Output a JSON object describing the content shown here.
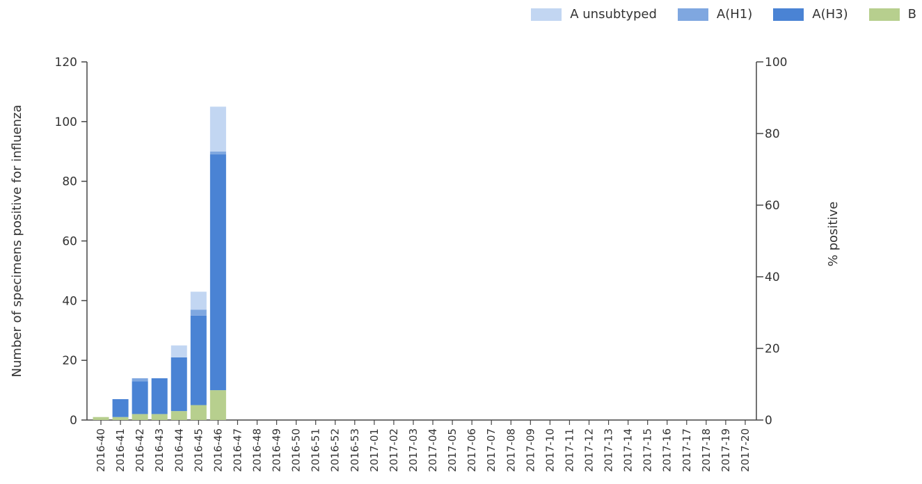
{
  "chart_data": {
    "type": "bar",
    "stacked": true,
    "categories": [
      "2016-40",
      "2016-41",
      "2016-42",
      "2016-43",
      "2016-44",
      "2016-45",
      "2016-46",
      "2016-47",
      "2016-48",
      "2016-49",
      "2016-50",
      "2016-51",
      "2016-52",
      "2016-53",
      "2017-01",
      "2017-02",
      "2017-03",
      "2017-04",
      "2017-05",
      "2017-06",
      "2017-07",
      "2017-08",
      "2017-09",
      "2017-10",
      "2017-11",
      "2017-12",
      "2017-13",
      "2017-14",
      "2017-15",
      "2017-16",
      "2017-17",
      "2017-18",
      "2017-19",
      "2017-20"
    ],
    "series": [
      {
        "name": "B",
        "color": "#b7cf8e",
        "values": [
          1,
          1,
          2,
          2,
          3,
          5,
          10,
          0,
          0,
          0,
          0,
          0,
          0,
          0,
          0,
          0,
          0,
          0,
          0,
          0,
          0,
          0,
          0,
          0,
          0,
          0,
          0,
          0,
          0,
          0,
          0,
          0,
          0,
          0
        ]
      },
      {
        "name": "A(H3)",
        "color": "#4a83d4",
        "values": [
          0,
          6,
          11,
          12,
          18,
          30,
          79,
          0,
          0,
          0,
          0,
          0,
          0,
          0,
          0,
          0,
          0,
          0,
          0,
          0,
          0,
          0,
          0,
          0,
          0,
          0,
          0,
          0,
          0,
          0,
          0,
          0,
          0,
          0
        ]
      },
      {
        "name": "A(H1)",
        "color": "#7fa7e0",
        "values": [
          0,
          0,
          1,
          0,
          0,
          2,
          1,
          0,
          0,
          0,
          0,
          0,
          0,
          0,
          0,
          0,
          0,
          0,
          0,
          0,
          0,
          0,
          0,
          0,
          0,
          0,
          0,
          0,
          0,
          0,
          0,
          0,
          0,
          0
        ]
      },
      {
        "name": "A unsubtyped",
        "color": "#c2d6f2",
        "values": [
          0,
          0,
          0,
          0,
          4,
          6,
          15,
          0,
          0,
          0,
          0,
          0,
          0,
          0,
          0,
          0,
          0,
          0,
          0,
          0,
          0,
          0,
          0,
          0,
          0,
          0,
          0,
          0,
          0,
          0,
          0,
          0,
          0,
          0
        ]
      }
    ],
    "legend_order": [
      "A unsubtyped",
      "A(H1)",
      "A(H3)",
      "B"
    ],
    "legend_position": "top-right",
    "ylabel": "Number of specimens positive for influenza",
    "ylim": [
      0,
      120
    ],
    "yticks": [
      0,
      20,
      40,
      60,
      80,
      100,
      120
    ],
    "y2label": "% positive",
    "y2lim": [
      0,
      100
    ],
    "y2ticks": [
      0,
      20,
      40,
      60,
      80,
      100
    ],
    "grid": false
  }
}
